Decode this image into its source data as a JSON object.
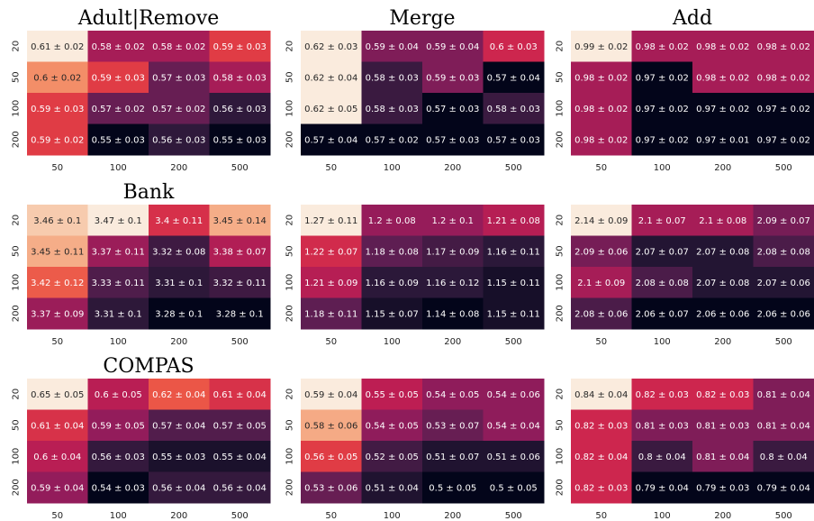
{
  "chart_data": [
    {
      "type": "heatmap",
      "title": "Adult|Remove",
      "row_labels": [
        "20",
        "50",
        "100",
        "200"
      ],
      "col_labels": [
        "50",
        "100",
        "200",
        "500"
      ],
      "cells": [
        [
          "0.61 ± 0.02",
          "0.58 ± 0.02",
          "0.58 ± 0.02",
          "0.59 ± 0.03"
        ],
        [
          "0.6 ± 0.02",
          "0.59 ± 0.03",
          "0.57 ± 0.03",
          "0.58 ± 0.03"
        ],
        [
          "0.59 ± 0.03",
          "0.57 ± 0.02",
          "0.57 ± 0.02",
          "0.56 ± 0.03"
        ],
        [
          "0.59 ± 0.02",
          "0.55 ± 0.03",
          "0.56 ± 0.03",
          "0.55 ± 0.03"
        ]
      ],
      "values": [
        [
          0.61,
          0.58,
          0.58,
          0.59
        ],
        [
          0.6,
          0.59,
          0.57,
          0.58
        ],
        [
          0.59,
          0.57,
          0.57,
          0.56
        ],
        [
          0.59,
          0.55,
          0.56,
          0.55
        ]
      ]
    },
    {
      "type": "heatmap",
      "title": "Merge",
      "row_labels": [
        "20",
        "50",
        "100",
        "200"
      ],
      "col_labels": [
        "50",
        "100",
        "200",
        "500"
      ],
      "cells": [
        [
          "0.62 ± 0.03",
          "0.59 ± 0.04",
          "0.59 ± 0.04",
          "0.6 ± 0.03"
        ],
        [
          "0.62 ± 0.04",
          "0.58 ± 0.03",
          "0.59 ± 0.03",
          "0.57 ± 0.04"
        ],
        [
          "0.62 ± 0.05",
          "0.58 ± 0.03",
          "0.57 ± 0.03",
          "0.58 ± 0.03"
        ],
        [
          "0.57 ± 0.04",
          "0.57 ± 0.02",
          "0.57 ± 0.03",
          "0.57 ± 0.03"
        ]
      ],
      "values": [
        [
          0.62,
          0.59,
          0.59,
          0.6
        ],
        [
          0.62,
          0.58,
          0.59,
          0.57
        ],
        [
          0.62,
          0.58,
          0.57,
          0.58
        ],
        [
          0.57,
          0.57,
          0.57,
          0.57
        ]
      ]
    },
    {
      "type": "heatmap",
      "title": "Add",
      "row_labels": [
        "20",
        "50",
        "100",
        "200"
      ],
      "col_labels": [
        "50",
        "100",
        "200",
        "500"
      ],
      "cells": [
        [
          "0.99 ± 0.02",
          "0.98 ± 0.02",
          "0.98 ± 0.02",
          "0.98 ± 0.02"
        ],
        [
          "0.98 ± 0.02",
          "0.97 ± 0.02",
          "0.98 ± 0.02",
          "0.98 ± 0.02"
        ],
        [
          "0.98 ± 0.02",
          "0.97 ± 0.02",
          "0.97 ± 0.02",
          "0.97 ± 0.02"
        ],
        [
          "0.98 ± 0.02",
          "0.97 ± 0.02",
          "0.97 ± 0.01",
          "0.97 ± 0.02"
        ]
      ],
      "values": [
        [
          0.99,
          0.98,
          0.98,
          0.98
        ],
        [
          0.98,
          0.97,
          0.98,
          0.98
        ],
        [
          0.98,
          0.97,
          0.97,
          0.97
        ],
        [
          0.98,
          0.97,
          0.97,
          0.97
        ]
      ]
    },
    {
      "type": "heatmap",
      "title": "Bank",
      "row_labels": [
        "20",
        "50",
        "100",
        "200"
      ],
      "col_labels": [
        "50",
        "100",
        "200",
        "500"
      ],
      "cells": [
        [
          "3.46 ± 0.1",
          "3.47 ± 0.1",
          "3.4 ± 0.11",
          "3.45 ± 0.14"
        ],
        [
          "3.45 ± 0.11",
          "3.37 ± 0.11",
          "3.32 ± 0.08",
          "3.38 ± 0.07"
        ],
        [
          "3.42 ± 0.12",
          "3.33 ± 0.11",
          "3.31 ± 0.1",
          "3.32 ± 0.11"
        ],
        [
          "3.37 ± 0.09",
          "3.31 ± 0.1",
          "3.28 ± 0.1",
          "3.28 ± 0.1"
        ]
      ],
      "values": [
        [
          3.46,
          3.47,
          3.4,
          3.45
        ],
        [
          3.45,
          3.37,
          3.32,
          3.38
        ],
        [
          3.42,
          3.33,
          3.31,
          3.32
        ],
        [
          3.37,
          3.31,
          3.28,
          3.28
        ]
      ]
    },
    {
      "type": "heatmap",
      "title": "",
      "row_labels": [
        "20",
        "50",
        "100",
        "200"
      ],
      "col_labels": [
        "50",
        "100",
        "200",
        "500"
      ],
      "cells": [
        [
          "1.27 ± 0.11",
          "1.2 ± 0.08",
          "1.2 ± 0.1",
          "1.21 ± 0.08"
        ],
        [
          "1.22 ± 0.07",
          "1.18 ± 0.08",
          "1.17 ± 0.09",
          "1.16 ± 0.11"
        ],
        [
          "1.21 ± 0.09",
          "1.16 ± 0.09",
          "1.16 ± 0.12",
          "1.15 ± 0.11"
        ],
        [
          "1.18 ± 0.11",
          "1.15 ± 0.07",
          "1.14 ± 0.08",
          "1.15 ± 0.11"
        ]
      ],
      "values": [
        [
          1.27,
          1.2,
          1.2,
          1.21
        ],
        [
          1.22,
          1.18,
          1.17,
          1.16
        ],
        [
          1.21,
          1.16,
          1.16,
          1.15
        ],
        [
          1.18,
          1.15,
          1.14,
          1.15
        ]
      ]
    },
    {
      "type": "heatmap",
      "title": "",
      "row_labels": [
        "20",
        "50",
        "100",
        "200"
      ],
      "col_labels": [
        "50",
        "100",
        "200",
        "500"
      ],
      "cells": [
        [
          "2.14 ± 0.09",
          "2.1 ± 0.07",
          "2.1 ± 0.08",
          "2.09 ± 0.07"
        ],
        [
          "2.09 ± 0.06",
          "2.07 ± 0.07",
          "2.07 ± 0.08",
          "2.08 ± 0.08"
        ],
        [
          "2.1 ± 0.09",
          "2.08 ± 0.08",
          "2.07 ± 0.08",
          "2.07 ± 0.06"
        ],
        [
          "2.08 ± 0.06",
          "2.06 ± 0.07",
          "2.06 ± 0.06",
          "2.06 ± 0.06"
        ]
      ],
      "values": [
        [
          2.14,
          2.1,
          2.1,
          2.09
        ],
        [
          2.09,
          2.07,
          2.07,
          2.08
        ],
        [
          2.1,
          2.08,
          2.07,
          2.07
        ],
        [
          2.08,
          2.06,
          2.06,
          2.06
        ]
      ]
    },
    {
      "type": "heatmap",
      "title": "COMPAS",
      "row_labels": [
        "20",
        "50",
        "100",
        "200"
      ],
      "col_labels": [
        "50",
        "100",
        "200",
        "500"
      ],
      "cells": [
        [
          "0.65 ± 0.05",
          "0.6 ± 0.05",
          "0.62 ± 0.04",
          "0.61 ± 0.04"
        ],
        [
          "0.61 ± 0.04",
          "0.59 ± 0.05",
          "0.57 ± 0.04",
          "0.57 ± 0.05"
        ],
        [
          "0.6 ± 0.04",
          "0.56 ± 0.03",
          "0.55 ± 0.03",
          "0.55 ± 0.04"
        ],
        [
          "0.59 ± 0.04",
          "0.54 ± 0.03",
          "0.56 ± 0.04",
          "0.56 ± 0.04"
        ]
      ],
      "values": [
        [
          0.65,
          0.6,
          0.62,
          0.61
        ],
        [
          0.61,
          0.59,
          0.57,
          0.57
        ],
        [
          0.6,
          0.56,
          0.55,
          0.55
        ],
        [
          0.59,
          0.54,
          0.56,
          0.56
        ]
      ]
    },
    {
      "type": "heatmap",
      "title": "",
      "row_labels": [
        "20",
        "50",
        "100",
        "200"
      ],
      "col_labels": [
        "50",
        "100",
        "200",
        "500"
      ],
      "cells": [
        [
          "0.59 ± 0.04",
          "0.55 ± 0.05",
          "0.54 ± 0.05",
          "0.54 ± 0.06"
        ],
        [
          "0.58 ± 0.06",
          "0.54 ± 0.05",
          "0.53 ± 0.07",
          "0.54 ± 0.04"
        ],
        [
          "0.56 ± 0.05",
          "0.52 ± 0.05",
          "0.51 ± 0.07",
          "0.51 ± 0.06"
        ],
        [
          "0.53 ± 0.06",
          "0.51 ± 0.04",
          "0.5 ± 0.05",
          "0.5 ± 0.05"
        ]
      ],
      "values": [
        [
          0.59,
          0.55,
          0.54,
          0.54
        ],
        [
          0.58,
          0.54,
          0.53,
          0.54
        ],
        [
          0.56,
          0.52,
          0.51,
          0.51
        ],
        [
          0.53,
          0.51,
          0.5,
          0.5
        ]
      ]
    },
    {
      "type": "heatmap",
      "title": "",
      "row_labels": [
        "20",
        "50",
        "100",
        "200"
      ],
      "col_labels": [
        "50",
        "100",
        "200",
        "500"
      ],
      "cells": [
        [
          "0.84 ± 0.04",
          "0.82 ± 0.03",
          "0.82 ± 0.03",
          "0.81 ± 0.04"
        ],
        [
          "0.82 ± 0.03",
          "0.81 ± 0.03",
          "0.81 ± 0.03",
          "0.81 ± 0.04"
        ],
        [
          "0.82 ± 0.04",
          "0.8 ± 0.04",
          "0.81 ± 0.04",
          "0.8 ± 0.04"
        ],
        [
          "0.82 ± 0.03",
          "0.79 ± 0.04",
          "0.79 ± 0.03",
          "0.79 ± 0.04"
        ]
      ],
      "values": [
        [
          0.84,
          0.82,
          0.82,
          0.81
        ],
        [
          0.82,
          0.81,
          0.81,
          0.81
        ],
        [
          0.82,
          0.8,
          0.81,
          0.8
        ],
        [
          0.82,
          0.79,
          0.79,
          0.79
        ]
      ]
    }
  ]
}
